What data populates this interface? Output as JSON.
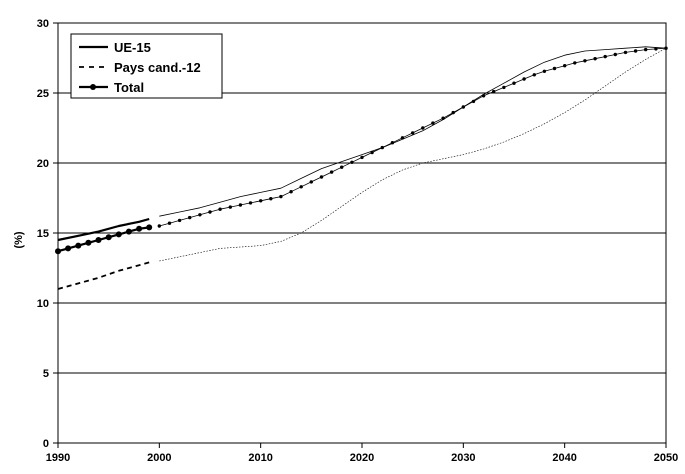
{
  "chart_data": {
    "type": "line",
    "title": "",
    "xlabel": "",
    "ylabel": "(%)",
    "xlim": [
      1990,
      2050
    ],
    "ylim": [
      0,
      30
    ],
    "grid": true,
    "legend_position": "top-left",
    "x_ticks": [
      "1990",
      "2000",
      "2010",
      "2020",
      "2030",
      "2040",
      "2050"
    ],
    "y_ticks": [
      "0",
      "5",
      "10",
      "15",
      "20",
      "25",
      "30"
    ],
    "series": [
      {
        "name": "UE-15",
        "style": "solid-thin",
        "historical": {
          "x": [
            1990,
            1992,
            1994,
            1996,
            1998,
            1999
          ],
          "y": [
            14.5,
            14.8,
            15.1,
            15.5,
            15.8,
            16.0
          ]
        },
        "projection": {
          "x": [
            2000,
            2002,
            2004,
            2006,
            2008,
            2010,
            2012,
            2014,
            2016,
            2018,
            2020,
            2022,
            2024,
            2026,
            2028,
            2030,
            2032,
            2034,
            2036,
            2038,
            2040,
            2042,
            2044,
            2046,
            2048,
            2050
          ],
          "y": [
            16.2,
            16.5,
            16.8,
            17.2,
            17.6,
            17.9,
            18.2,
            18.9,
            19.6,
            20.1,
            20.6,
            21.1,
            21.7,
            22.3,
            23.1,
            24.0,
            24.9,
            25.7,
            26.5,
            27.2,
            27.7,
            28.0,
            28.1,
            28.2,
            28.3,
            28.2
          ]
        }
      },
      {
        "name": "Pays cand.-12",
        "style": "dashed",
        "historical": {
          "x": [
            1990,
            1992,
            1994,
            1996,
            1998,
            1999
          ],
          "y": [
            11.0,
            11.4,
            11.8,
            12.3,
            12.7,
            12.9
          ]
        },
        "projection": {
          "x": [
            2000,
            2002,
            2004,
            2006,
            2008,
            2010,
            2012,
            2014,
            2016,
            2018,
            2020,
            2022,
            2024,
            2026,
            2028,
            2030,
            2032,
            2034,
            2036,
            2038,
            2040,
            2042,
            2044,
            2046,
            2048,
            2050
          ],
          "y": [
            13.0,
            13.3,
            13.6,
            13.9,
            14.0,
            14.1,
            14.4,
            15.0,
            15.9,
            16.9,
            17.9,
            18.8,
            19.5,
            20.0,
            20.3,
            20.6,
            21.0,
            21.5,
            22.1,
            22.8,
            23.6,
            24.5,
            25.5,
            26.5,
            27.4,
            28.2
          ]
        }
      },
      {
        "name": "Total",
        "style": "solid-markers",
        "historical": {
          "x": [
            1990,
            1991,
            1992,
            1993,
            1994,
            1995,
            1996,
            1997,
            1998,
            1999
          ],
          "y": [
            13.7,
            13.9,
            14.1,
            14.3,
            14.5,
            14.7,
            14.9,
            15.1,
            15.3,
            15.4
          ]
        },
        "projection": {
          "x": [
            2000,
            2001,
            2002,
            2003,
            2004,
            2005,
            2006,
            2007,
            2008,
            2009,
            2010,
            2011,
            2012,
            2013,
            2014,
            2015,
            2016,
            2017,
            2018,
            2019,
            2020,
            2021,
            2022,
            2023,
            2024,
            2025,
            2026,
            2027,
            2028,
            2029,
            2030,
            2031,
            2032,
            2033,
            2034,
            2035,
            2036,
            2037,
            2038,
            2039,
            2040,
            2041,
            2042,
            2043,
            2044,
            2045,
            2046,
            2047,
            2048,
            2049,
            2050
          ],
          "y": [
            15.5,
            15.7,
            15.9,
            16.1,
            16.3,
            16.5,
            16.7,
            16.85,
            17.0,
            17.15,
            17.3,
            17.45,
            17.6,
            17.95,
            18.3,
            18.65,
            19.0,
            19.35,
            19.7,
            20.05,
            20.4,
            20.75,
            21.1,
            21.45,
            21.8,
            22.15,
            22.5,
            22.85,
            23.2,
            23.6,
            24.0,
            24.4,
            24.8,
            25.1,
            25.4,
            25.7,
            26.0,
            26.3,
            26.55,
            26.75,
            26.95,
            27.15,
            27.3,
            27.45,
            27.6,
            27.75,
            27.9,
            28.0,
            28.1,
            28.15,
            28.2
          ]
        }
      }
    ]
  }
}
